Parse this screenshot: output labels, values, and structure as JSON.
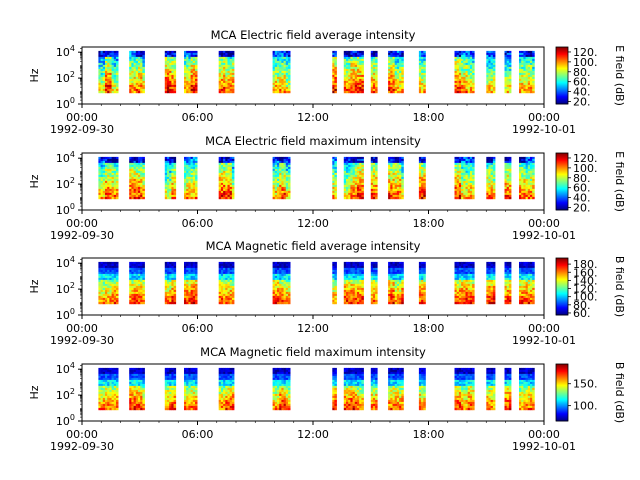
{
  "chart_data": [
    {
      "type": "heatmap",
      "title": "MCA  Electric field average intensity",
      "ylabel": "Hz",
      "y_scale": "log",
      "y_ticks": [
        {
          "exp": "0",
          "value": 1
        },
        {
          "exp": "2",
          "value": 100
        },
        {
          "exp": "4",
          "value": 10000
        }
      ],
      "x_ticks": [
        "00:00",
        "06:00",
        "12:00",
        "18:00",
        "00:00"
      ],
      "x_date_labels": [
        "1992-09-30",
        "1992-10-01"
      ],
      "colorbar": {
        "label": "E field (dB)",
        "min": 15,
        "max": 130,
        "ticks": [
          20,
          40,
          60,
          80,
          100,
          120
        ],
        "tick_labels": [
          "20.",
          "40.",
          "60.",
          "80.",
          "100.",
          "120."
        ]
      },
      "data_intervals_hours": [
        [
          0.85,
          1.9
        ],
        [
          2.45,
          3.3
        ],
        [
          4.3,
          4.9
        ],
        [
          5.3,
          6.0
        ],
        [
          7.1,
          7.9
        ],
        [
          9.9,
          10.8
        ],
        [
          13.0,
          13.25
        ],
        [
          13.6,
          14.6
        ],
        [
          15.0,
          15.35
        ],
        [
          15.9,
          16.7
        ],
        [
          17.5,
          17.9
        ],
        [
          19.35,
          20.4
        ],
        [
          21.0,
          21.5
        ],
        [
          21.95,
          22.3
        ],
        [
          22.7,
          23.5
        ]
      ],
      "profile": "E"
    },
    {
      "type": "heatmap",
      "title": "MCA  Electric field maximum intensity",
      "ylabel": "Hz",
      "y_scale": "log",
      "y_ticks": [
        {
          "exp": "0",
          "value": 1
        },
        {
          "exp": "2",
          "value": 100
        },
        {
          "exp": "4",
          "value": 10000
        }
      ],
      "x_ticks": [
        "00:00",
        "06:00",
        "12:00",
        "18:00",
        "00:00"
      ],
      "x_date_labels": [
        "1992-09-30",
        "1992-10-01"
      ],
      "colorbar": {
        "label": "E field (dB)",
        "min": 15,
        "max": 130,
        "ticks": [
          20,
          40,
          60,
          80,
          100,
          120
        ],
        "tick_labels": [
          "20.",
          "40.",
          "60.",
          "80.",
          "100.",
          "120."
        ]
      },
      "data_intervals_hours": [
        [
          0.85,
          1.9
        ],
        [
          2.45,
          3.3
        ],
        [
          4.3,
          4.9
        ],
        [
          5.3,
          6.0
        ],
        [
          7.1,
          7.9
        ],
        [
          9.9,
          10.8
        ],
        [
          13.0,
          13.25
        ],
        [
          13.6,
          14.6
        ],
        [
          15.0,
          15.35
        ],
        [
          15.9,
          16.7
        ],
        [
          17.5,
          17.9
        ],
        [
          19.35,
          20.4
        ],
        [
          21.0,
          21.5
        ],
        [
          21.95,
          22.3
        ],
        [
          22.7,
          23.5
        ]
      ],
      "profile": "E"
    },
    {
      "type": "heatmap",
      "title": "MCA  Magnetic field average intensity",
      "ylabel": "Hz",
      "y_scale": "log",
      "y_ticks": [
        {
          "exp": "0",
          "value": 1
        },
        {
          "exp": "2",
          "value": 100
        },
        {
          "exp": "4",
          "value": 10000
        }
      ],
      "x_ticks": [
        "00:00",
        "06:00",
        "12:00",
        "18:00",
        "00:00"
      ],
      "x_date_labels": [
        "1992-09-30",
        "1992-10-01"
      ],
      "colorbar": {
        "label": "B field (dB)",
        "min": 55,
        "max": 195,
        "ticks": [
          60,
          80,
          100,
          120,
          140,
          160,
          180
        ],
        "tick_labels": [
          "60.",
          "80.",
          "100.",
          "120.",
          "140.",
          "160.",
          "180."
        ]
      },
      "data_intervals_hours": [
        [
          0.85,
          1.9
        ],
        [
          2.45,
          3.3
        ],
        [
          4.3,
          4.9
        ],
        [
          5.3,
          6.0
        ],
        [
          7.1,
          7.9
        ],
        [
          9.9,
          10.8
        ],
        [
          13.0,
          13.25
        ],
        [
          13.6,
          14.6
        ],
        [
          15.0,
          15.35
        ],
        [
          15.9,
          16.7
        ],
        [
          17.5,
          17.9
        ],
        [
          19.35,
          20.4
        ],
        [
          21.0,
          21.5
        ],
        [
          21.95,
          22.3
        ],
        [
          22.7,
          23.5
        ]
      ],
      "profile": "B"
    },
    {
      "type": "heatmap",
      "title": "MCA  Magnetic field maximum intensity",
      "ylabel": "Hz",
      "y_scale": "log",
      "y_ticks": [
        {
          "exp": "0",
          "value": 1
        },
        {
          "exp": "2",
          "value": 100
        },
        {
          "exp": "4",
          "value": 10000
        }
      ],
      "x_ticks": [
        "00:00",
        "06:00",
        "12:00",
        "18:00",
        "00:00"
      ],
      "x_date_labels": [
        "1992-09-30",
        "1992-10-01"
      ],
      "colorbar": {
        "label": "B field (dB)",
        "min": 65,
        "max": 195,
        "ticks": [
          100,
          150
        ],
        "tick_labels": [
          "100.",
          "150."
        ]
      },
      "data_intervals_hours": [
        [
          0.85,
          1.9
        ],
        [
          2.45,
          3.3
        ],
        [
          4.3,
          4.9
        ],
        [
          5.3,
          6.0
        ],
        [
          7.1,
          7.9
        ],
        [
          9.9,
          10.8
        ],
        [
          13.0,
          13.25
        ],
        [
          13.6,
          14.6
        ],
        [
          15.0,
          15.35
        ],
        [
          15.9,
          16.7
        ],
        [
          17.5,
          17.9
        ],
        [
          19.35,
          20.4
        ],
        [
          21.0,
          21.5
        ],
        [
          21.95,
          22.3
        ],
        [
          22.7,
          23.5
        ]
      ],
      "profile": "B"
    }
  ]
}
